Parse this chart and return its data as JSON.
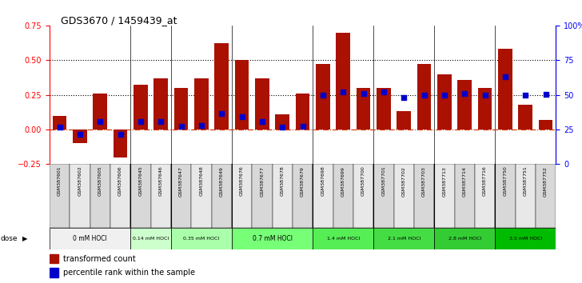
{
  "title": "GDS3670 / 1459439_at",
  "samples": [
    "GSM387601",
    "GSM387602",
    "GSM387605",
    "GSM387606",
    "GSM387645",
    "GSM387646",
    "GSM387647",
    "GSM387648",
    "GSM387649",
    "GSM387676",
    "GSM387677",
    "GSM387678",
    "GSM387679",
    "GSM387698",
    "GSM387699",
    "GSM387700",
    "GSM387701",
    "GSM387702",
    "GSM387703",
    "GSM387713",
    "GSM387714",
    "GSM387716",
    "GSM387750",
    "GSM387751",
    "GSM387752"
  ],
  "bar_values": [
    0.1,
    -0.1,
    0.26,
    -0.2,
    0.32,
    0.37,
    0.3,
    0.37,
    0.62,
    0.5,
    0.37,
    0.11,
    0.26,
    0.47,
    0.7,
    0.3,
    0.3,
    0.13,
    0.47,
    0.4,
    0.36,
    0.3,
    0.58,
    0.18,
    0.07
  ],
  "percentile_values": [
    26.5,
    21.5,
    30.5,
    21.5,
    30.5,
    30.5,
    27.0,
    28.0,
    36.5,
    34.0,
    31.0,
    26.5,
    27.0,
    50.0,
    52.0,
    51.0,
    52.0,
    48.0,
    50.0,
    50.0,
    51.0,
    50.0,
    63.0,
    49.5,
    50.5
  ],
  "dose_groups": [
    {
      "label": "0 mM HOCl",
      "start": 0,
      "end": 4,
      "color": "#f0f0f0"
    },
    {
      "label": "0.14 mM HOCl",
      "start": 4,
      "end": 6,
      "color": "#ccffcc"
    },
    {
      "label": "0.35 mM HOCl",
      "start": 6,
      "end": 9,
      "color": "#aaffaa"
    },
    {
      "label": "0.7 mM HOCl",
      "start": 9,
      "end": 13,
      "color": "#77ff77"
    },
    {
      "label": "1.4 mM HOCl",
      "start": 13,
      "end": 16,
      "color": "#55ee55"
    },
    {
      "label": "2.1 mM HOCl",
      "start": 16,
      "end": 19,
      "color": "#44dd44"
    },
    {
      "label": "2.8 mM HOCl",
      "start": 19,
      "end": 22,
      "color": "#33cc33"
    },
    {
      "label": "3.5 mM HOCl",
      "start": 22,
      "end": 25,
      "color": "#00bb00"
    }
  ],
  "ylim_left": [
    -0.25,
    0.75
  ],
  "ylim_right": [
    0,
    100
  ],
  "yticks_left": [
    -0.25,
    0.0,
    0.25,
    0.5,
    0.75
  ],
  "yticks_right": [
    0,
    25,
    50,
    75,
    100
  ],
  "bar_color": "#aa1100",
  "dot_color": "#0000cc",
  "plot_bg": "#ffffff",
  "hline_zero_color": "#cc3300",
  "hline_zero_style": "-.",
  "hline_dotted_color": "black",
  "hline_dotted_style": ":"
}
